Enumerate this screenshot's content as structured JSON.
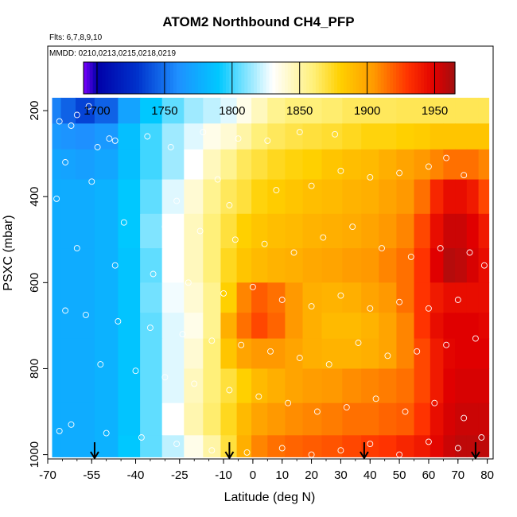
{
  "chart_data": {
    "type": "heatmap",
    "title": "ATOM2 Northbound CH4_PFP",
    "flights_label": "Flts: 6,7,8,9,10",
    "dates_label": "MMDD: 0210,0213,0215,0218,0219",
    "xlabel": "Latitude (deg N)",
    "ylabel": "PSXC (mbar)",
    "xlim": [
      -70,
      82
    ],
    "ylim": [
      1010,
      50
    ],
    "x_ticks": [
      -70,
      -55,
      -40,
      -25,
      -10,
      0,
      10,
      20,
      30,
      40,
      50,
      60,
      70,
      80
    ],
    "y_ticks": [
      200,
      400,
      600,
      800,
      1000
    ],
    "colorbar": {
      "range": [
        1690,
        1965
      ],
      "ticks": [
        1700,
        1750,
        1800,
        1850,
        1900,
        1950
      ],
      "colors": [
        "#7b00ff",
        "#0000a8",
        "#0033cc",
        "#1e90ff",
        "#00c8ff",
        "#ffffff",
        "#fff07a",
        "#ffd000",
        "#ff9900",
        "#ff3300",
        "#e00000",
        "#a01010"
      ],
      "stops": [
        1690,
        1700,
        1730,
        1760,
        1790,
        1830,
        1860,
        1880,
        1905,
        1930,
        1950,
        1965
      ]
    },
    "curtain": {
      "latitudes": [
        -68,
        -63,
        -58,
        -50,
        -42,
        -35,
        -27,
        -20,
        -14,
        -8,
        -3,
        2,
        8,
        14,
        20,
        27,
        34,
        40,
        46,
        52,
        58,
        63,
        67,
        71,
        75,
        79
      ],
      "pressures": [
        200,
        260,
        320,
        400,
        480,
        560,
        640,
        700,
        760,
        840,
        920,
        990
      ],
      "values": [
        [
          1755,
          1745,
          1735,
          1745,
          1770,
          1790,
          1805,
          1815,
          1820,
          1825,
          1835,
          1845,
          1855,
          1860,
          1860,
          1862,
          1865,
          1865,
          1865,
          1866,
          1866,
          1866,
          1866,
          1866,
          1866,
          1866
        ],
        [
          1765,
          1762,
          1760,
          1765,
          1785,
          1800,
          1815,
          1825,
          1835,
          1840,
          1850,
          1860,
          1865,
          1868,
          1870,
          1872,
          1875,
          1878,
          1878,
          1880,
          1882,
          1885,
          1885,
          1885,
          1885,
          1885
        ],
        [
          1772,
          1770,
          1768,
          1772,
          1785,
          1800,
          1815,
          1830,
          1845,
          1855,
          1865,
          1870,
          1875,
          1878,
          1880,
          1885,
          1888,
          1890,
          1895,
          1900,
          1905,
          1910,
          1915,
          1915,
          1915,
          1910
        ],
        [
          1775,
          1775,
          1775,
          1778,
          1790,
          1805,
          1825,
          1840,
          1855,
          1865,
          1870,
          1878,
          1882,
          1885,
          1888,
          1890,
          1893,
          1895,
          1900,
          1905,
          1915,
          1935,
          1945,
          1945,
          1940,
          1925
        ],
        [
          1775,
          1775,
          1775,
          1778,
          1790,
          1810,
          1830,
          1845,
          1860,
          1870,
          1880,
          1885,
          1888,
          1890,
          1893,
          1895,
          1897,
          1900,
          1905,
          1910,
          1925,
          1945,
          1955,
          1955,
          1950,
          1940
        ],
        [
          1775,
          1775,
          1775,
          1778,
          1788,
          1805,
          1830,
          1845,
          1860,
          1875,
          1885,
          1890,
          1893,
          1895,
          1898,
          1900,
          1903,
          1905,
          1910,
          1915,
          1930,
          1950,
          1960,
          1958,
          1952,
          1945
        ],
        [
          1775,
          1775,
          1775,
          1778,
          1788,
          1808,
          1828,
          1840,
          1855,
          1880,
          1910,
          1920,
          1915,
          1905,
          1895,
          1893,
          1895,
          1900,
          1905,
          1915,
          1930,
          1940,
          1945,
          1945,
          1945,
          1945
        ],
        [
          1775,
          1775,
          1775,
          1778,
          1788,
          1805,
          1825,
          1835,
          1855,
          1895,
          1915,
          1925,
          1918,
          1905,
          1895,
          1890,
          1890,
          1893,
          1900,
          1910,
          1930,
          1945,
          1950,
          1950,
          1950,
          1948
        ],
        [
          1775,
          1775,
          1775,
          1778,
          1788,
          1805,
          1825,
          1840,
          1860,
          1885,
          1900,
          1905,
          1905,
          1900,
          1895,
          1893,
          1893,
          1895,
          1900,
          1910,
          1925,
          1940,
          1948,
          1950,
          1950,
          1950
        ],
        [
          1775,
          1775,
          1775,
          1778,
          1788,
          1805,
          1825,
          1845,
          1860,
          1870,
          1880,
          1890,
          1895,
          1900,
          1903,
          1905,
          1908,
          1910,
          1912,
          1915,
          1925,
          1940,
          1950,
          1952,
          1952,
          1952
        ],
        [
          1775,
          1775,
          1775,
          1778,
          1788,
          1805,
          1830,
          1848,
          1862,
          1875,
          1890,
          1900,
          1905,
          1908,
          1910,
          1912,
          1915,
          1915,
          1918,
          1920,
          1930,
          1945,
          1952,
          1955,
          1955,
          1955
        ],
        [
          1775,
          1775,
          1775,
          1778,
          1790,
          1805,
          1820,
          1835,
          1850,
          1870,
          1895,
          1910,
          1915,
          1918,
          1920,
          1922,
          1925,
          1928,
          1930,
          1935,
          1940,
          1948,
          1955,
          1958,
          1958,
          1958
        ]
      ]
    },
    "flight_markers_lat": [
      -54,
      -8,
      38,
      76
    ],
    "sample_points": [
      [
        -56,
        190
      ],
      [
        -60,
        210
      ],
      [
        -66,
        225
      ],
      [
        -62,
        235
      ],
      [
        -49,
        265
      ],
      [
        -53,
        285
      ],
      [
        -47,
        270
      ],
      [
        -64,
        320
      ],
      [
        -55,
        365
      ],
      [
        -67,
        405
      ],
      [
        -36,
        260
      ],
      [
        -28,
        285
      ],
      [
        -17,
        250
      ],
      [
        -5,
        265
      ],
      [
        5,
        270
      ],
      [
        16,
        250
      ],
      [
        28,
        255
      ],
      [
        -20,
        345
      ],
      [
        -12,
        360
      ],
      [
        -26,
        410
      ],
      [
        -8,
        420
      ],
      [
        8,
        385
      ],
      [
        20,
        375
      ],
      [
        30,
        340
      ],
      [
        40,
        355
      ],
      [
        50,
        345
      ],
      [
        60,
        330
      ],
      [
        66,
        310
      ],
      [
        72,
        350
      ],
      [
        -44,
        460
      ],
      [
        -30,
        470
      ],
      [
        -18,
        480
      ],
      [
        -6,
        500
      ],
      [
        4,
        510
      ],
      [
        14,
        530
      ],
      [
        24,
        495
      ],
      [
        34,
        470
      ],
      [
        44,
        520
      ],
      [
        54,
        540
      ],
      [
        64,
        520
      ],
      [
        74,
        530
      ],
      [
        79,
        560
      ],
      [
        -60,
        520
      ],
      [
        -47,
        560
      ],
      [
        -34,
        580
      ],
      [
        -22,
        600
      ],
      [
        -10,
        625
      ],
      [
        0,
        610
      ],
      [
        10,
        640
      ],
      [
        20,
        655
      ],
      [
        30,
        630
      ],
      [
        40,
        660
      ],
      [
        50,
        645
      ],
      [
        60,
        660
      ],
      [
        70,
        640
      ],
      [
        -64,
        665
      ],
      [
        -57,
        675
      ],
      [
        -46,
        690
      ],
      [
        -35,
        705
      ],
      [
        -24,
        720
      ],
      [
        -14,
        735
      ],
      [
        -4,
        745
      ],
      [
        6,
        760
      ],
      [
        16,
        775
      ],
      [
        26,
        790
      ],
      [
        36,
        740
      ],
      [
        46,
        770
      ],
      [
        56,
        760
      ],
      [
        66,
        745
      ],
      [
        76,
        730
      ],
      [
        -52,
        790
      ],
      [
        -40,
        805
      ],
      [
        -30,
        820
      ],
      [
        -20,
        835
      ],
      [
        -8,
        850
      ],
      [
        2,
        865
      ],
      [
        12,
        880
      ],
      [
        22,
        900
      ],
      [
        32,
        890
      ],
      [
        42,
        870
      ],
      [
        52,
        900
      ],
      [
        62,
        880
      ],
      [
        72,
        915
      ],
      [
        -62,
        930
      ],
      [
        -50,
        950
      ],
      [
        -38,
        960
      ],
      [
        -26,
        975
      ],
      [
        -14,
        990
      ],
      [
        -2,
        995
      ],
      [
        10,
        985
      ],
      [
        20,
        1000
      ],
      [
        30,
        990
      ],
      [
        40,
        975
      ],
      [
        50,
        1000
      ],
      [
        60,
        970
      ],
      [
        70,
        985
      ],
      [
        78,
        960
      ],
      [
        -66,
        945
      ]
    ]
  }
}
